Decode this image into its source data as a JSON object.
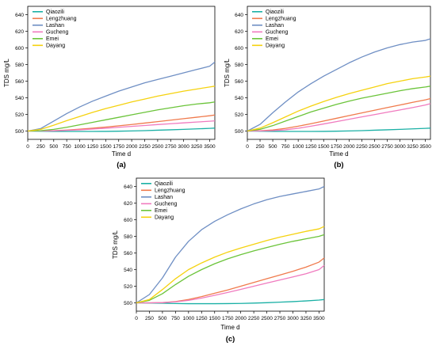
{
  "series_colors": {
    "Qiaozili": "#1ab0a5",
    "Lengzhuang": "#f07a4c",
    "Lashan": "#6f8fc4",
    "Gucheng": "#f07bbf",
    "Emei": "#6bc43a",
    "Dayang": "#f5d20f"
  },
  "chart_data": [
    {
      "panel_label": "(a)",
      "type": "line",
      "xlabel": "Time d",
      "ylabel": "TDS mg/L",
      "xlim": [
        0,
        3600
      ],
      "ylim": [
        490,
        650
      ],
      "xticks": [
        0,
        250,
        500,
        750,
        1000,
        1250,
        1500,
        1750,
        2000,
        2250,
        2500,
        2750,
        3000,
        3250,
        3500
      ],
      "yticks": [
        500,
        520,
        540,
        560,
        580,
        600,
        620,
        640
      ],
      "grid": false,
      "legend": "top-left",
      "x": [
        0,
        250,
        500,
        750,
        1000,
        1250,
        1500,
        1750,
        2000,
        2250,
        2500,
        2750,
        3000,
        3250,
        3500,
        3600
      ],
      "series": [
        {
          "name": "Qiaozili",
          "values": [
            500,
            499.8,
            499.6,
            499.5,
            499.5,
            499.5,
            499.6,
            499.8,
            500.1,
            500.5,
            501,
            501.5,
            502,
            502.6,
            503.2,
            503.5
          ]
        },
        {
          "name": "Lengzhuang",
          "values": [
            500,
            500.1,
            500.5,
            501.2,
            502.2,
            503.4,
            504.8,
            506.3,
            507.9,
            509.6,
            511.3,
            513.1,
            514.9,
            516.6,
            518.4,
            519.3
          ]
        },
        {
          "name": "Lashan",
          "values": [
            500,
            503,
            512,
            521,
            529,
            536,
            542,
            548,
            553,
            558,
            562,
            566,
            570,
            574,
            578,
            583
          ]
        },
        {
          "name": "Gucheng",
          "values": [
            500,
            500.1,
            500.3,
            500.8,
            501.5,
            502.4,
            503.4,
            504.5,
            505.6,
            506.7,
            507.8,
            508.8,
            509.8,
            510.8,
            511.8,
            512.3
          ]
        },
        {
          "name": "Emei",
          "values": [
            500,
            500.5,
            502,
            504.5,
            507.5,
            510.5,
            513.5,
            516.5,
            519.5,
            522.5,
            525.5,
            528,
            530.5,
            532.5,
            534,
            535
          ]
        },
        {
          "name": "Dayang",
          "values": [
            500,
            502,
            507,
            512.5,
            517.5,
            522.5,
            527,
            531,
            535,
            538.5,
            542,
            545,
            548,
            550.5,
            553,
            554
          ]
        }
      ]
    },
    {
      "panel_label": "(b)",
      "type": "line",
      "xlabel": "Time d",
      "ylabel": "TDS mg/L",
      "xlim": [
        0,
        3600
      ],
      "ylim": [
        490,
        650
      ],
      "xticks": [
        0,
        250,
        500,
        750,
        1000,
        1250,
        1500,
        1750,
        2000,
        2250,
        2500,
        2750,
        3000,
        3250,
        3500
      ],
      "yticks": [
        500,
        520,
        540,
        560,
        580,
        600,
        620,
        640
      ],
      "grid": false,
      "legend": "top-left",
      "x": [
        0,
        250,
        500,
        750,
        1000,
        1250,
        1500,
        1750,
        2000,
        2250,
        2500,
        2750,
        3000,
        3250,
        3500,
        3600
      ],
      "series": [
        {
          "name": "Qiaozili",
          "values": [
            500,
            499.8,
            499.6,
            499.5,
            499.5,
            499.5,
            499.6,
            499.8,
            500.1,
            500.5,
            501,
            501.5,
            502,
            502.6,
            503.2,
            503.5
          ]
        },
        {
          "name": "Lengzhuang",
          "values": [
            500,
            500.3,
            501.3,
            503.2,
            505.8,
            508.8,
            512,
            515.3,
            518.6,
            521.8,
            525,
            528.2,
            531.3,
            534.5,
            537.5,
            539
          ]
        },
        {
          "name": "Lashan",
          "values": [
            500,
            508,
            522,
            535,
            547,
            557,
            566,
            574,
            582,
            589,
            595,
            600,
            604,
            607,
            609,
            611
          ]
        },
        {
          "name": "Gucheng",
          "values": [
            500,
            500.1,
            500.5,
            501.5,
            503.3,
            505.8,
            508.5,
            511.3,
            514.2,
            517,
            519.8,
            522.6,
            525.4,
            528.2,
            531.3,
            533
          ]
        },
        {
          "name": "Emei",
          "values": [
            500,
            502,
            506.5,
            512,
            517.5,
            523,
            527.5,
            532,
            536,
            539.5,
            542.5,
            545.5,
            548.5,
            551,
            553,
            554
          ]
        },
        {
          "name": "Dayang",
          "values": [
            500,
            503.5,
            510,
            517,
            524,
            530,
            535.5,
            540.5,
            545,
            549,
            553,
            557,
            560,
            563,
            565,
            566
          ]
        }
      ]
    },
    {
      "panel_label": "(c)",
      "type": "line",
      "xlabel": "Time d",
      "ylabel": "TDS mg/L",
      "xlim": [
        0,
        3600
      ],
      "ylim": [
        490,
        650
      ],
      "xticks": [
        0,
        250,
        500,
        750,
        1000,
        1250,
        1500,
        1750,
        2000,
        2250,
        2500,
        2750,
        3000,
        3250,
        3500
      ],
      "yticks": [
        500,
        520,
        540,
        560,
        580,
        600,
        620,
        640
      ],
      "grid": false,
      "legend": "top-left",
      "x": [
        0,
        250,
        500,
        750,
        1000,
        1250,
        1500,
        1750,
        2000,
        2250,
        2500,
        2750,
        3000,
        3250,
        3500,
        3600
      ],
      "series": [
        {
          "name": "Qiaozili",
          "values": [
            500,
            499.8,
            499.5,
            499.2,
            499,
            499,
            499,
            499.1,
            499.3,
            499.7,
            500.2,
            500.8,
            501.5,
            502.3,
            503.3,
            504
          ]
        },
        {
          "name": "Lengzhuang",
          "values": [
            500,
            500,
            500.3,
            501.5,
            504,
            507.5,
            511.5,
            515.5,
            520,
            524.5,
            529,
            533.5,
            538,
            543,
            549,
            554
          ]
        },
        {
          "name": "Lashan",
          "values": [
            500,
            510,
            530,
            555,
            574,
            588,
            598,
            606,
            613,
            619,
            624,
            628,
            631,
            634,
            637,
            640
          ]
        },
        {
          "name": "Gucheng",
          "values": [
            500,
            500,
            500.3,
            501.2,
            503,
            505.7,
            509,
            512.5,
            516.2,
            520,
            523.8,
            527.5,
            531.2,
            535,
            540,
            545
          ]
        },
        {
          "name": "Emei",
          "values": [
            500,
            503,
            511,
            522,
            532,
            540,
            547,
            553,
            558,
            562.5,
            566.5,
            570.5,
            574,
            577,
            580,
            582
          ]
        },
        {
          "name": "Dayang",
          "values": [
            500,
            504,
            516,
            529,
            540,
            548,
            555,
            561,
            566,
            570.5,
            575,
            579,
            582.5,
            586,
            589,
            592
          ]
        }
      ]
    }
  ]
}
